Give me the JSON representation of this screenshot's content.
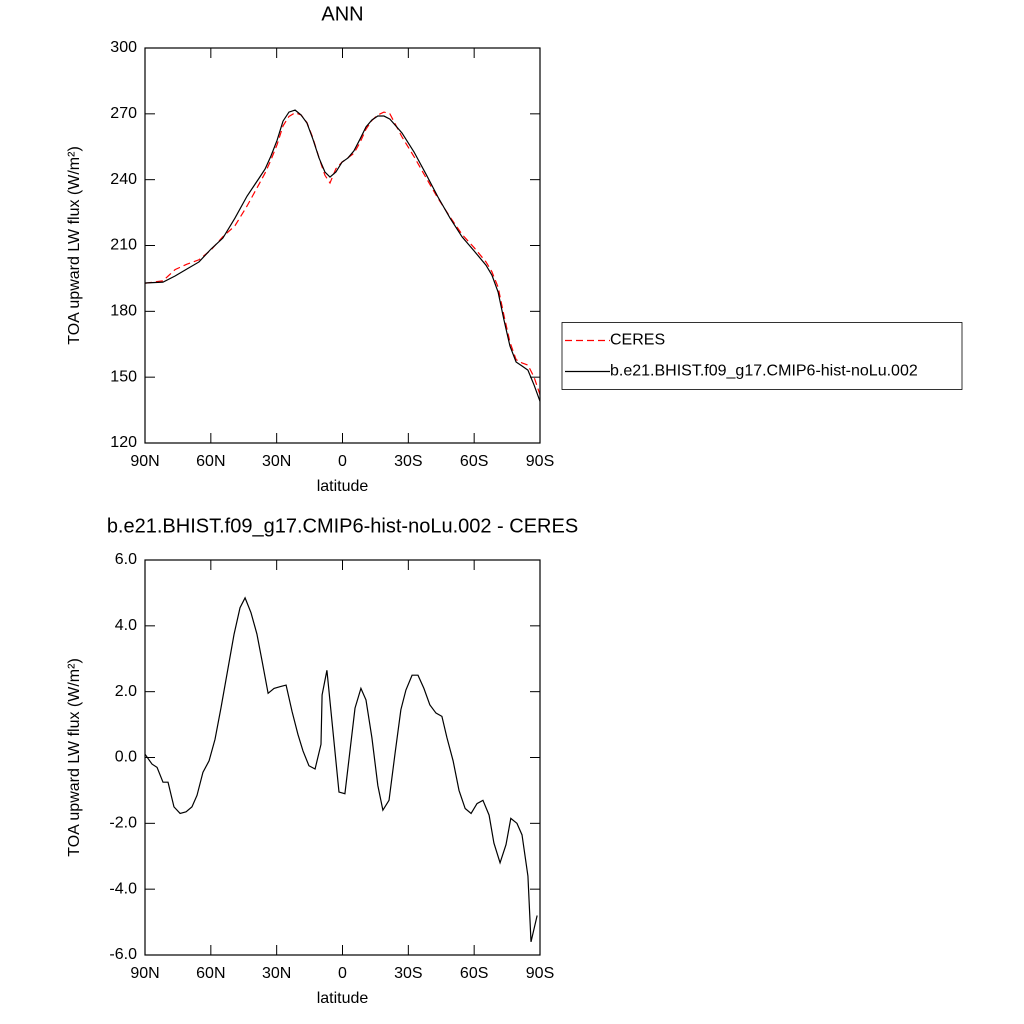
{
  "chart_data": [
    {
      "type": "line",
      "title": "ANN",
      "x_label": "latitude",
      "y_label": "TOA upward LW flux (W/m²)",
      "x": [
        90,
        81.8,
        76.3,
        70.9,
        65.4,
        59.9,
        54.5,
        49,
        43.5,
        38,
        35.3,
        32.6,
        29.8,
        27.1,
        24.4,
        21.6,
        18.9,
        16.2,
        13.5,
        10.7,
        8,
        5.7,
        3,
        0.2,
        -2.5,
        -5.2,
        -8,
        -10.7,
        -13.4,
        -16.1,
        -18.9,
        -21.6,
        -27.1,
        -32.6,
        -38,
        -43.5,
        -49,
        -54.5,
        -60,
        -65.4,
        -68.1,
        -70.9,
        -73.6,
        -76.3,
        -79.1,
        -81.8,
        -84.5,
        -87.3,
        -90
      ],
      "series": [
        {
          "name": "CERES",
          "color": "#ff0000",
          "dashed": true,
          "values": [
            192.8,
            193.9,
            199,
            201.5,
            203.5,
            208,
            214,
            219,
            228,
            238,
            243,
            249,
            256,
            264.5,
            268.8,
            270.5,
            269.5,
            266,
            259,
            250,
            242,
            238.5,
            245,
            248,
            250,
            252,
            257,
            263,
            267,
            269.5,
            270.8,
            270,
            259.5,
            250.5,
            241,
            231.5,
            223,
            215,
            209,
            202.5,
            198,
            191,
            178,
            166,
            158,
            156.5,
            155.5,
            150,
            142
          ]
        },
        {
          "name": "b.e21.BHIST.f09_g17.CMIP6-hist-noLu.002",
          "color": "#000000",
          "dashed": false,
          "values": [
            192.9,
            193.3,
            196.1,
            199.3,
            202.5,
            208.4,
            213.4,
            222.5,
            232.5,
            240.7,
            244.8,
            250.8,
            258,
            266.7,
            270.8,
            271.7,
            269.5,
            265.8,
            258.5,
            249.9,
            243.5,
            241.2,
            243.5,
            248,
            249.9,
            253.1,
            258.5,
            264,
            267.2,
            269,
            269,
            267.6,
            261.3,
            252.6,
            242.6,
            232.1,
            222.5,
            213.9,
            207.5,
            201,
            196.5,
            188.8,
            176,
            164.2,
            156.9,
            155.1,
            153.2,
            146.4,
            139
          ]
        }
      ],
      "xlim": [
        90,
        -90
      ],
      "xticks": [
        {
          "value": 90,
          "label": "90N"
        },
        {
          "value": 60,
          "label": "60N"
        },
        {
          "value": 30,
          "label": "30N"
        },
        0,
        {
          "value": -30,
          "label": "30S"
        },
        {
          "value": -60,
          "label": "60S"
        },
        {
          "value": -90,
          "label": "90S"
        }
      ],
      "ylim": [
        120,
        300
      ],
      "yticks": [
        120,
        150,
        180,
        210,
        240,
        270,
        300
      ],
      "legend": "right"
    },
    {
      "type": "line",
      "title": "b.e21.BHIST.f09_g17.CMIP6-hist-noLu.002 - CERES",
      "x_label": "latitude",
      "y_label": "TOA upward LW flux (W/m²)",
      "x": [
        90,
        86.8,
        84.5,
        81.8,
        79.5,
        76.8,
        74,
        71.3,
        68.6,
        66.3,
        63.6,
        60.8,
        58.1,
        55.4,
        52.2,
        49.4,
        46.7,
        44.4,
        41.7,
        39,
        36.7,
        33.9,
        31.2,
        28.5,
        25.7,
        23,
        20.3,
        18,
        15.3,
        12.5,
        9.8,
        9.3,
        7.1,
        1.6,
        -1.1,
        -5.7,
        -8.4,
        -10.7,
        -13.4,
        -16.1,
        -18.4,
        -21.2,
        -23.9,
        -26.6,
        -28.9,
        -31.7,
        -34.4,
        -37.1,
        -39.8,
        -42.6,
        -45.3,
        -47.6,
        -50.4,
        -53.1,
        -55.9,
        -58.6,
        -61.3,
        -64,
        -66.8,
        -69,
        -71.8,
        -74.5,
        -76.7,
        -79.5,
        -81.8,
        -84.5,
        -85.9,
        -88.7
      ],
      "series": [
        {
          "name": "b.e21.BHIST.f09_g17.CMIP6-hist-noLu.002 - CERES",
          "color": "#000000",
          "dashed": false,
          "values": [
            0.1,
            -0.2,
            -0.3,
            -0.75,
            -0.75,
            -1.5,
            -1.7,
            -1.65,
            -1.5,
            -1.15,
            -0.45,
            -0.1,
            0.55,
            1.5,
            2.7,
            3.75,
            4.55,
            4.85,
            4.4,
            3.75,
            2.95,
            1.95,
            2.1,
            2.15,
            2.2,
            1.4,
            0.7,
            0.2,
            -0.25,
            -0.35,
            0.4,
            1.9,
            2.65,
            -1.05,
            -1.1,
            1.5,
            2.1,
            1.75,
            0.6,
            -0.85,
            -1.6,
            -1.3,
            0.1,
            1.45,
            2.05,
            2.5,
            2.5,
            2.1,
            1.6,
            1.35,
            1.25,
            0.6,
            -0.1,
            -1,
            -1.55,
            -1.7,
            -1.4,
            -1.3,
            -1.75,
            -2.6,
            -3.2,
            -2.65,
            -1.85,
            -2,
            -2.35,
            -3.6,
            -5.6,
            -4.8
          ]
        }
      ],
      "xlim": [
        90,
        -90
      ],
      "xticks": [
        {
          "value": 90,
          "label": "90N"
        },
        {
          "value": 60,
          "label": "60N"
        },
        {
          "value": 30,
          "label": "30N"
        },
        0,
        {
          "value": -30,
          "label": "30S"
        },
        {
          "value": -60,
          "label": "60S"
        },
        {
          "value": -90,
          "label": "90S"
        }
      ],
      "ylim": [
        -6,
        6
      ],
      "yticks": [
        {
          "value": -6,
          "label": "-6.0"
        },
        {
          "value": -4,
          "label": "-4.0"
        },
        {
          "value": -2,
          "label": "-2.0"
        },
        {
          "value": 0,
          "label": "0.0"
        },
        {
          "value": 2,
          "label": "2.0"
        },
        {
          "value": 4,
          "label": "4.0"
        },
        {
          "value": 6,
          "label": "6.0"
        }
      ]
    }
  ]
}
